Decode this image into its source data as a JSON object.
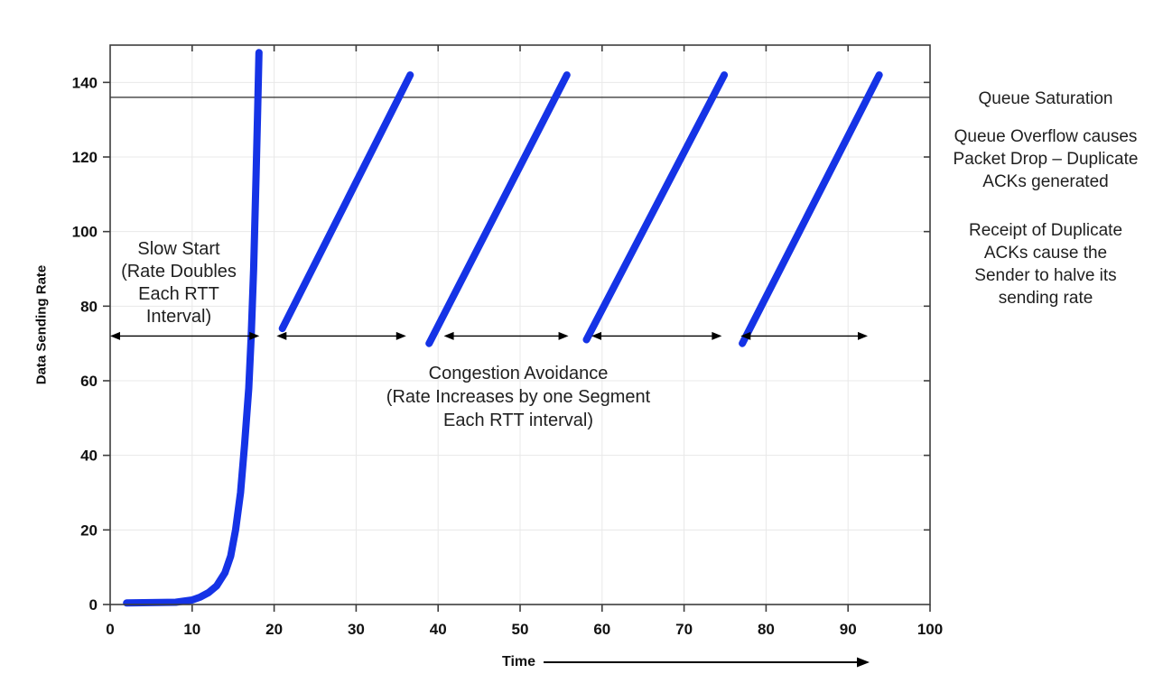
{
  "figure": {
    "background": "#ffffff"
  },
  "chart_data": {
    "type": "line",
    "title": "",
    "xlabel": "Time",
    "ylabel": "Data Sending Rate",
    "xlim": [
      0,
      100
    ],
    "ylim": [
      0,
      150
    ],
    "xticks": [
      0,
      10,
      20,
      30,
      40,
      50,
      60,
      70,
      80,
      90,
      100
    ],
    "yticks": [
      0,
      20,
      40,
      60,
      80,
      100,
      120,
      140
    ],
    "grid": true,
    "legend": "none",
    "colors": {
      "line": "#1533e6",
      "grid": "#e8e8e8",
      "frame": "#3d3d3d",
      "saturation_line": "#2b2b2b",
      "tick_text": "#111111",
      "annotation_text": "#1f1f1f",
      "arrow": "#000000"
    },
    "saturation_level": 136,
    "series": [
      {
        "name": "slow-start-curve",
        "points": [
          [
            2,
            0.4
          ],
          [
            8,
            0.6
          ],
          [
            10,
            1.2
          ],
          [
            11,
            2
          ],
          [
            12,
            3.2
          ],
          [
            13,
            5
          ],
          [
            14,
            8.5
          ],
          [
            14.7,
            13
          ],
          [
            15.3,
            20
          ],
          [
            15.9,
            30
          ],
          [
            16.4,
            43
          ],
          [
            16.9,
            58
          ],
          [
            17.2,
            72
          ],
          [
            17.5,
            90
          ],
          [
            17.8,
            115
          ],
          [
            18.0,
            133
          ],
          [
            18.15,
            148
          ]
        ]
      },
      {
        "name": "congestion-avoidance-1",
        "points": [
          [
            21.0,
            74
          ],
          [
            36.6,
            142
          ]
        ]
      },
      {
        "name": "congestion-avoidance-2",
        "points": [
          [
            38.9,
            70
          ],
          [
            55.7,
            142
          ]
        ]
      },
      {
        "name": "congestion-avoidance-3",
        "points": [
          [
            58.1,
            71
          ],
          [
            74.9,
            142
          ]
        ]
      },
      {
        "name": "congestion-avoidance-4",
        "points": [
          [
            77.1,
            70
          ],
          [
            93.8,
            142
          ]
        ]
      }
    ],
    "phase_arrows": [
      {
        "from": 0,
        "to": 18.2,
        "y": 72
      },
      {
        "from": 20.3,
        "to": 36.1,
        "y": 72
      },
      {
        "from": 40.7,
        "to": 55.9,
        "y": 72
      },
      {
        "from": 58.7,
        "to": 74.6,
        "y": 72
      },
      {
        "from": 76.9,
        "to": 92.4,
        "y": 72
      }
    ],
    "annotations": {
      "slow_start": {
        "lines": [
          "Slow Start",
          "(Rate Doubles",
          "Each RTT",
          "Interval)"
        ]
      },
      "congestion_avoidance": {
        "lines": [
          "Congestion Avoidance",
          "(Rate Increases by one Segment",
          "Each RTT interval)"
        ]
      },
      "queue_saturation": "Queue Saturation",
      "queue_overflow": {
        "lines": [
          "Queue Overflow causes",
          "Packet Drop – Duplicate",
          "ACKs generated"
        ]
      },
      "duplicate_acks": {
        "lines": [
          "Receipt of Duplicate",
          "ACKs cause the",
          "Sender to halve its",
          "sending rate"
        ]
      }
    }
  }
}
